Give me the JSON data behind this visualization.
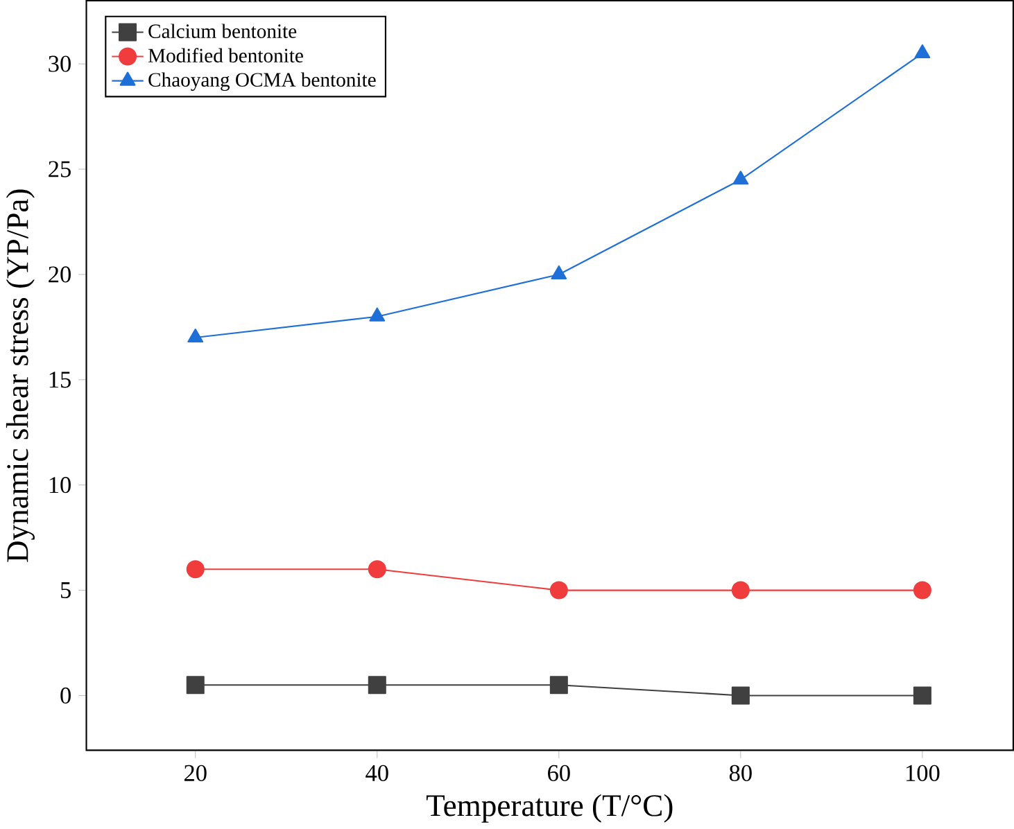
{
  "chart_data": {
    "type": "line",
    "xlabel": "Temperature (T/°C)",
    "ylabel": "Dynamic shear stress (YP/Pa)",
    "x": [
      20,
      40,
      60,
      80,
      100
    ],
    "series": [
      {
        "name": "Calcium bentonite",
        "color": "#404040",
        "marker": "square",
        "values": [
          0.5,
          0.5,
          0.5,
          0,
          0
        ]
      },
      {
        "name": "Modified bentonite",
        "color": "#f03c3c",
        "marker": "circle",
        "values": [
          6,
          6,
          5,
          5,
          5
        ]
      },
      {
        "name": "Chaoyang OCMA bentonite",
        "color": "#1f6fd8",
        "marker": "triangle",
        "values": [
          17,
          18,
          20,
          24.5,
          30.5
        ]
      }
    ],
    "xlim": [
      8,
      110
    ],
    "ylim": [
      -2.6,
      33
    ],
    "xticks": [
      20,
      40,
      60,
      80,
      100
    ],
    "yticks": [
      0,
      5,
      10,
      15,
      20,
      25,
      30
    ],
    "grid": false,
    "legend": "top left"
  }
}
